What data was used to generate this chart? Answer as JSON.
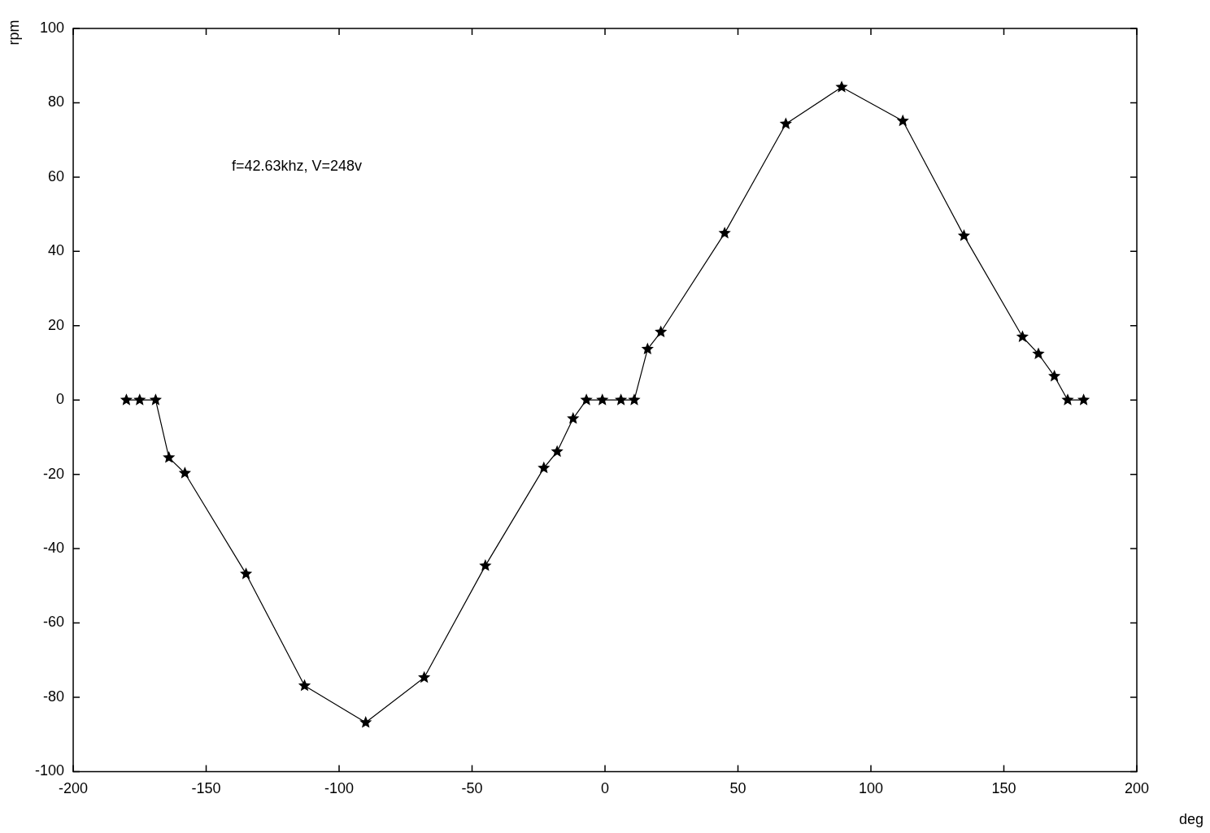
{
  "chart_data": {
    "type": "line",
    "xlabel": "deg",
    "ylabel": "rpm",
    "annotations": [
      "f=42.63khz, V=248v"
    ],
    "x": [
      -180,
      -175,
      -169,
      -164,
      -158,
      -135,
      -113,
      -90,
      -68,
      -45,
      -23,
      -18,
      -12,
      -7,
      -1,
      6,
      11,
      16,
      21,
      45,
      68,
      89,
      112,
      135,
      157,
      163,
      169,
      174,
      180
    ],
    "values": [
      0,
      0,
      0,
      -15.5,
      -19.7,
      -46.8,
      -76.9,
      -86.8,
      -74.7,
      -44.6,
      -18.3,
      -13.9,
      -5,
      0,
      0,
      0,
      0,
      13.7,
      18.3,
      44.9,
      74.3,
      84.2,
      75.1,
      44.2,
      17,
      12.4,
      6.4,
      0,
      0
    ],
    "color": "#000000",
    "marker": "star",
    "line_style": "solid",
    "grid": false,
    "legend": false,
    "xlim": [
      -200,
      200
    ],
    "xticks": [
      -200,
      -150,
      -100,
      -50,
      0,
      50,
      100,
      150,
      200
    ],
    "ylim": [
      -100,
      100
    ],
    "yticks": [
      -100,
      -80,
      -60,
      -40,
      -20,
      0,
      20,
      40,
      60,
      80,
      100
    ]
  }
}
